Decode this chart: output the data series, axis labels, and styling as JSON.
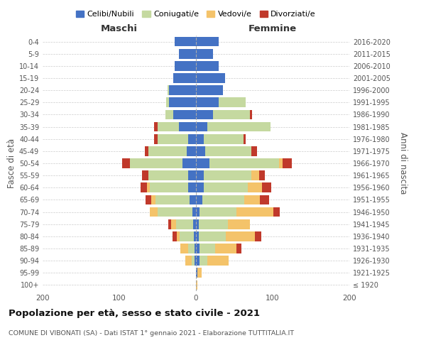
{
  "age_groups": [
    "100+",
    "95-99",
    "90-94",
    "85-89",
    "80-84",
    "75-79",
    "70-74",
    "65-69",
    "60-64",
    "55-59",
    "50-54",
    "45-49",
    "40-44",
    "35-39",
    "30-34",
    "25-29",
    "20-24",
    "15-19",
    "10-14",
    "5-9",
    "0-4"
  ],
  "birth_years": [
    "≤ 1920",
    "1921-1925",
    "1926-1930",
    "1931-1935",
    "1936-1940",
    "1941-1945",
    "1946-1950",
    "1951-1955",
    "1956-1960",
    "1961-1965",
    "1966-1970",
    "1971-1975",
    "1976-1980",
    "1981-1985",
    "1986-1990",
    "1991-1995",
    "1996-2000",
    "2001-2005",
    "2006-2010",
    "2011-2015",
    "2016-2020"
  ],
  "colors": {
    "celibi": "#4472c4",
    "coniugati": "#c5d9a0",
    "vedovi": "#f4c36a",
    "divorziati": "#c0392b"
  },
  "maschi": {
    "celibi": [
      0,
      0,
      2,
      2,
      3,
      4,
      5,
      8,
      10,
      10,
      18,
      12,
      10,
      22,
      30,
      35,
      35,
      30,
      28,
      22,
      28
    ],
    "coniugati": [
      0,
      0,
      4,
      8,
      18,
      22,
      45,
      45,
      50,
      52,
      68,
      50,
      40,
      28,
      10,
      4,
      2,
      0,
      0,
      0,
      0
    ],
    "vedovi": [
      0,
      0,
      8,
      10,
      4,
      6,
      10,
      5,
      4,
      0,
      0,
      0,
      0,
      0,
      0,
      0,
      0,
      0,
      0,
      0,
      0
    ],
    "divorziati": [
      0,
      0,
      0,
      0,
      6,
      4,
      0,
      8,
      8,
      8,
      10,
      5,
      5,
      5,
      0,
      0,
      0,
      0,
      0,
      0,
      0
    ]
  },
  "femmine": {
    "celibi": [
      0,
      2,
      5,
      5,
      4,
      4,
      5,
      8,
      10,
      10,
      18,
      12,
      10,
      15,
      22,
      30,
      35,
      38,
      30,
      22,
      30
    ],
    "coniugati": [
      0,
      0,
      10,
      20,
      35,
      38,
      48,
      55,
      58,
      62,
      90,
      60,
      52,
      82,
      48,
      35,
      0,
      0,
      0,
      0,
      0
    ],
    "vedovi": [
      2,
      5,
      28,
      28,
      38,
      28,
      48,
      20,
      18,
      10,
      5,
      0,
      0,
      0,
      0,
      0,
      0,
      0,
      0,
      0,
      0
    ],
    "divorziati": [
      0,
      0,
      0,
      6,
      8,
      0,
      8,
      12,
      12,
      8,
      12,
      8,
      3,
      0,
      3,
      0,
      0,
      0,
      0,
      0,
      0
    ]
  },
  "title": "Popolazione per età, sesso e stato civile - 2021",
  "subtitle": "COMUNE DI VIBONATI (SA) - Dati ISTAT 1° gennaio 2021 - Elaborazione TUTTITALIA.IT",
  "xlabel_left": "Maschi",
  "xlabel_right": "Femmine",
  "ylabel_left": "Fasce di età",
  "ylabel_right": "Anni di nascita",
  "xlim": 200,
  "legend_labels": [
    "Celibi/Nubili",
    "Coniugati/e",
    "Vedovi/e",
    "Divorziati/e"
  ],
  "legend_colors": [
    "#4472c4",
    "#c5d9a0",
    "#f4c36a",
    "#c0392b"
  ]
}
